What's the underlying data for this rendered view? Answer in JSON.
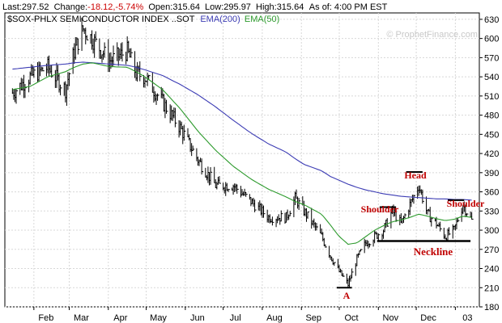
{
  "header": {
    "last_label": "Last:",
    "last_value": "297.52",
    "change_label": "Change:",
    "change_value": "-18.12,-5.74%",
    "open_label": "Open:",
    "open_value": "315.64",
    "low_label": "Low:",
    "low_value": "295.97",
    "high_label": "High:",
    "high_value": "315.64",
    "asof_label": "As of:",
    "asof_value": "4:00 PM EST"
  },
  "legend": {
    "symbol": "$SOX-PHLX SEMICONDUCTOR INDEX ..SOT",
    "ema200": "EMA(200)",
    "ema50": "EMA(50)"
  },
  "watermark": "© ProphetFinance.com",
  "colors": {
    "price": "#000000",
    "ema200": "#3c3cb4",
    "ema50": "#2c9a2c",
    "change": "#cc0000",
    "annotation": "#c00000",
    "grid": "#d8d8d8"
  },
  "annotations": {
    "head": "Head",
    "shoulder_left": "Shoulder",
    "shoulder_right": "Shoulder",
    "neckline": "Neckline",
    "point_a": "A"
  },
  "chart_data": {
    "type": "line",
    "style": "ohlc-bars",
    "title": "$SOX-PHLX SEMICONDUCTOR INDEX ..SOT",
    "xlabel": "",
    "ylabel": "",
    "ylim": [
      180,
      640
    ],
    "grid": true,
    "legend_position": "top-left",
    "x_ticks": [
      "Feb",
      "Mar",
      "Apr",
      "May",
      "Jun",
      "Jul",
      "Aug",
      "Sep",
      "Oct",
      "Nov",
      "Dec",
      "03"
    ],
    "y_ticks": [
      180,
      210,
      240,
      270,
      300,
      330,
      360,
      390,
      420,
      450,
      480,
      510,
      540,
      570,
      600,
      630
    ],
    "x": [
      "2002-01-15",
      "2002-01-29",
      "2002-02-12",
      "2002-02-26",
      "2002-03-05",
      "2002-03-12",
      "2002-03-19",
      "2002-04-02",
      "2002-04-16",
      "2002-04-23",
      "2002-04-30",
      "2002-05-14",
      "2002-05-28",
      "2002-06-11",
      "2002-06-25",
      "2002-07-09",
      "2002-07-23",
      "2002-08-06",
      "2002-08-20",
      "2002-08-27",
      "2002-09-03",
      "2002-09-17",
      "2002-09-24",
      "2002-10-01",
      "2002-10-08",
      "2002-10-15",
      "2002-10-22",
      "2002-10-29",
      "2002-11-05",
      "2002-11-12",
      "2002-11-19",
      "2002-11-26",
      "2002-12-03",
      "2002-12-10",
      "2002-12-17",
      "2002-12-24",
      "2002-12-31",
      "2003-01-07",
      "2003-01-14"
    ],
    "series": [
      {
        "name": "",
        "values": [
          515,
          540,
          555,
          520,
          580,
          615,
          600,
          565,
          580,
          545,
          540,
          500,
          460,
          410,
          370,
          370,
          345,
          320,
          320,
          350,
          330,
          290,
          260,
          235,
          215,
          255,
          280,
          290,
          300,
          330,
          310,
          340,
          370,
          325,
          310,
          290,
          300,
          340,
          315
        ]
      },
      {
        "name": "EMA(200)",
        "values": [
          552,
          555,
          558,
          560,
          562,
          563,
          562,
          560,
          558,
          555,
          551,
          542,
          528,
          512,
          493,
          472,
          452,
          435,
          422,
          412,
          403,
          393,
          384,
          378,
          372,
          367,
          363,
          360,
          357,
          355,
          353,
          352,
          351,
          350,
          349,
          349,
          348,
          348,
          347
        ]
      },
      {
        "name": "EMA(50)",
        "values": [
          520,
          525,
          540,
          548,
          555,
          560,
          562,
          556,
          555,
          548,
          540,
          520,
          490,
          455,
          425,
          400,
          380,
          364,
          352,
          345,
          340,
          325,
          308,
          290,
          278,
          280,
          290,
          300,
          307,
          313,
          316,
          320,
          325,
          322,
          318,
          315,
          317,
          322,
          320
        ]
      }
    ]
  }
}
